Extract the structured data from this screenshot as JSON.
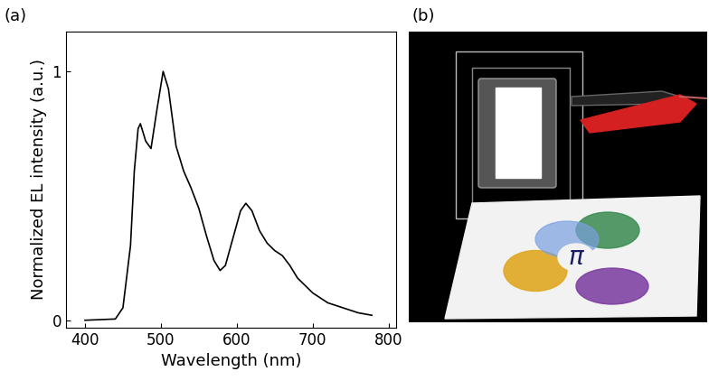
{
  "chart_data": {
    "type": "line",
    "x_label": "Wavelength (nm)",
    "y_label": "Normalized EL intensity (a.u.)",
    "x": [
      400,
      440,
      450,
      460,
      465,
      470,
      473,
      480,
      487,
      495,
      503,
      510,
      520,
      530,
      540,
      550,
      560,
      570,
      578,
      585,
      595,
      605,
      612,
      620,
      630,
      640,
      650,
      660,
      670,
      680,
      700,
      720,
      740,
      760,
      778
    ],
    "series": [
      {
        "name": "EL",
        "color": "#000000",
        "values": [
          0,
          0.005,
          0.05,
          0.3,
          0.6,
          0.77,
          0.79,
          0.72,
          0.69,
          0.85,
          1.0,
          0.93,
          0.7,
          0.6,
          0.53,
          0.45,
          0.34,
          0.24,
          0.2,
          0.22,
          0.33,
          0.44,
          0.47,
          0.44,
          0.36,
          0.31,
          0.28,
          0.26,
          0.22,
          0.17,
          0.11,
          0.07,
          0.05,
          0.03,
          0.02
        ]
      }
    ],
    "xlim": [
      375,
      810
    ],
    "xticks": [
      400,
      500,
      600,
      700,
      800
    ],
    "ylim": [
      -0.03,
      1.16
    ],
    "yticks": [
      0,
      1
    ],
    "grid": false
  },
  "panel_labels": [
    "(a)",
    "(b)"
  ],
  "photo": {
    "symbol": "π"
  }
}
